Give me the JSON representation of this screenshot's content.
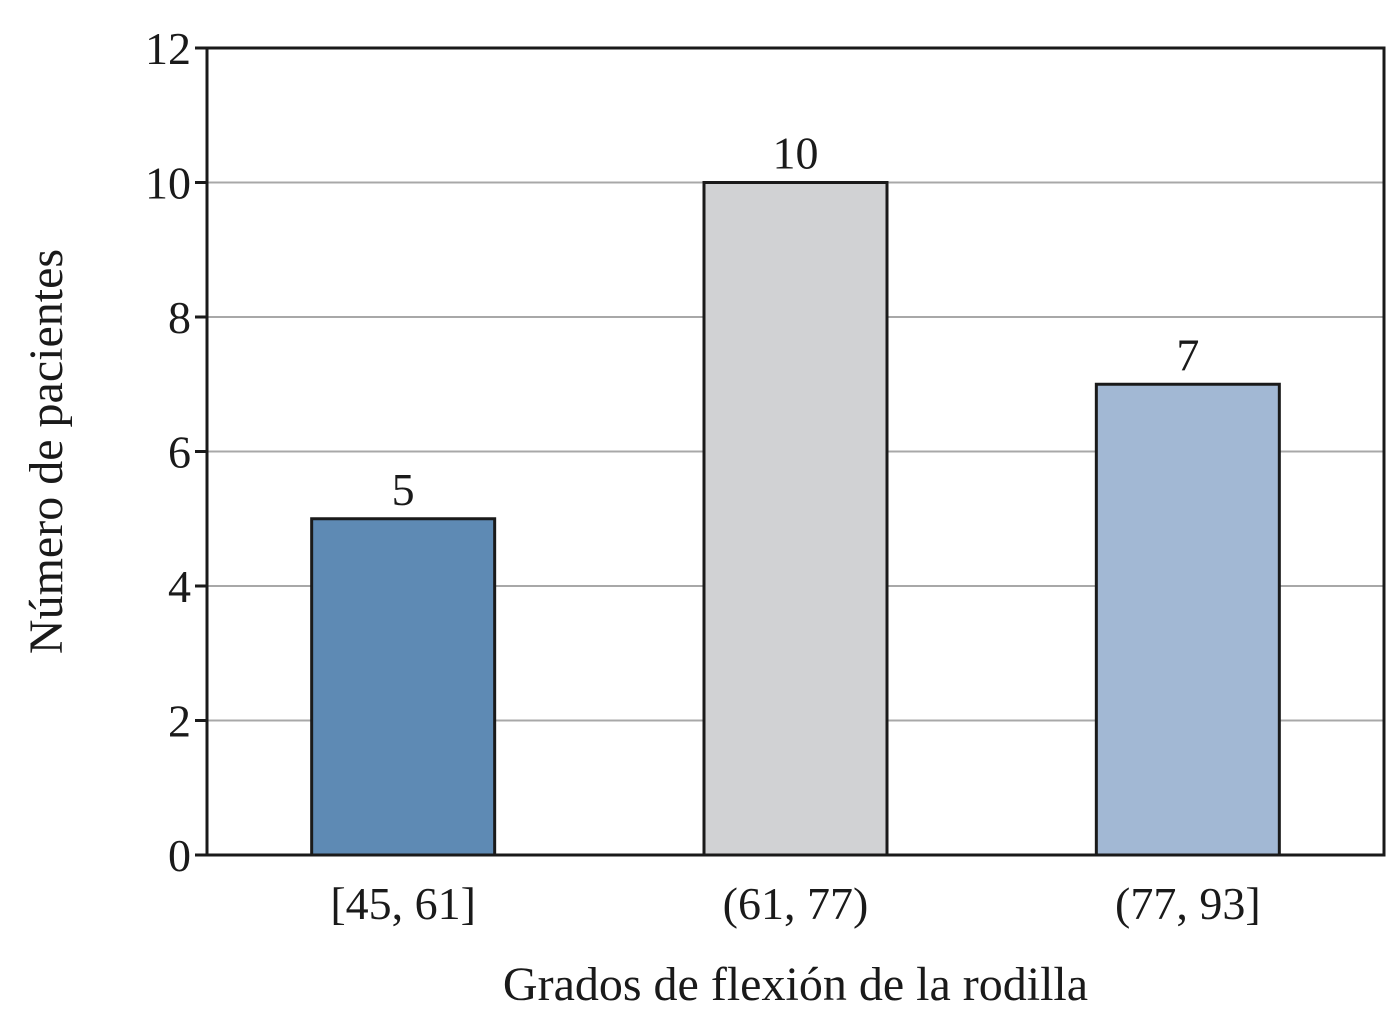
{
  "chart_data": {
    "type": "bar",
    "title": "",
    "xlabel": "Grados de flexión de la rodilla",
    "ylabel": "Número de pacientes",
    "categories": [
      "[45, 61]",
      "(61, 77)",
      "(77, 93]"
    ],
    "values": [
      5,
      10,
      7
    ],
    "data_labels": [
      "5",
      "10",
      "7"
    ],
    "bar_colors": [
      "#5e8ab4",
      "#d1d2d4",
      "#a2b8d4"
    ],
    "ylim": [
      0,
      12
    ],
    "yticks": [
      0,
      2,
      4,
      6,
      8,
      10,
      12
    ],
    "ytick_labels": [
      "0",
      "2",
      "4",
      "6",
      "8",
      "10",
      "12"
    ],
    "grid": true,
    "legend": false
  }
}
